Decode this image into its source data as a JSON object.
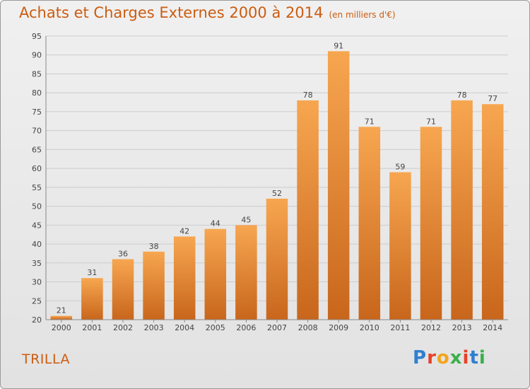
{
  "title": "Achats et Charges Externes 2000 à 2014",
  "unit_note": "(en milliers d'€)",
  "commune": "TRILLA",
  "logo": "Proxiti",
  "colors": {
    "bar": "#f0913a",
    "text": "#cc5c10",
    "axis": "#444444",
    "grid": "#cccccc"
  },
  "chart_data": {
    "type": "bar",
    "categories": [
      "2000",
      "2001",
      "2002",
      "2003",
      "2004",
      "2005",
      "2006",
      "2007",
      "2008",
      "2009",
      "2010",
      "2011",
      "2012",
      "2013",
      "2014"
    ],
    "values": [
      21,
      31,
      36,
      38,
      42,
      44,
      45,
      52,
      78,
      91,
      71,
      59,
      71,
      78,
      77
    ],
    "title": "Achats et Charges Externes 2000 à 2014",
    "ylim": [
      20,
      95
    ],
    "yticks": [
      20,
      25,
      30,
      35,
      40,
      45,
      50,
      55,
      60,
      65,
      70,
      75,
      80,
      85,
      90,
      95
    ],
    "grid": true
  }
}
